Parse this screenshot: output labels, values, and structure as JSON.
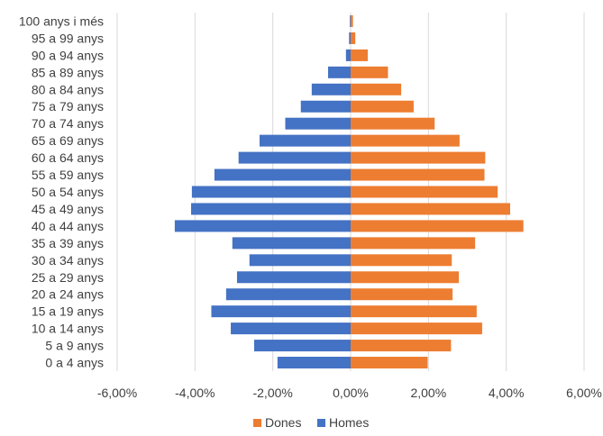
{
  "chart_data": {
    "type": "bar",
    "orientation": "horizontal",
    "title": "",
    "xlabel": "",
    "ylabel": "",
    "categories": [
      "100 anys i més",
      "95 a 99 anys",
      "90 a 94 anys",
      "85 a 89 anys",
      "80 a 84 anys",
      "75 a 79 anys",
      "70 a 74 anys",
      "65 a 69 anys",
      "60 a 64 anys",
      "55 a 59 anys",
      "50 a 54 anys",
      "45 a 49 anys",
      "40 a 44 anys",
      "35 a 39 anys",
      "30 a 34 anys",
      "25 a 29 anys",
      "20 a 24 anys",
      "15 a 19 anys",
      "10 a 14 anys",
      "5 a 9 anys",
      "0 a 4 anys"
    ],
    "series": [
      {
        "name": "Dones",
        "color": "#ED7D31",
        "values": [
          0.06,
          0.12,
          0.44,
          0.96,
          1.3,
          1.62,
          2.16,
          2.8,
          3.46,
          3.44,
          3.78,
          4.1,
          4.44,
          3.2,
          2.6,
          2.78,
          2.62,
          3.24,
          3.38,
          2.58,
          1.98
        ]
      },
      {
        "name": "Homes",
        "color": "#4472C4",
        "values": [
          -0.02,
          -0.04,
          -0.12,
          -0.58,
          -1.0,
          -1.28,
          -1.68,
          -2.34,
          -2.88,
          -3.5,
          -4.08,
          -4.1,
          -4.52,
          -3.04,
          -2.6,
          -2.92,
          -3.2,
          -3.58,
          -3.08,
          -2.48,
          -1.88
        ]
      }
    ],
    "xlim": [
      -6,
      6
    ],
    "x_ticks": [
      "-6,00%",
      "-4,00%",
      "-2,00%",
      "0,00%",
      "2,00%",
      "4,00%",
      "6,00%"
    ],
    "x_tick_values": [
      -6,
      -4,
      -2,
      0,
      2,
      4,
      6
    ],
    "grid": "vertical",
    "legend_position": "bottom",
    "legend": [
      "Dones",
      "Homes"
    ]
  }
}
